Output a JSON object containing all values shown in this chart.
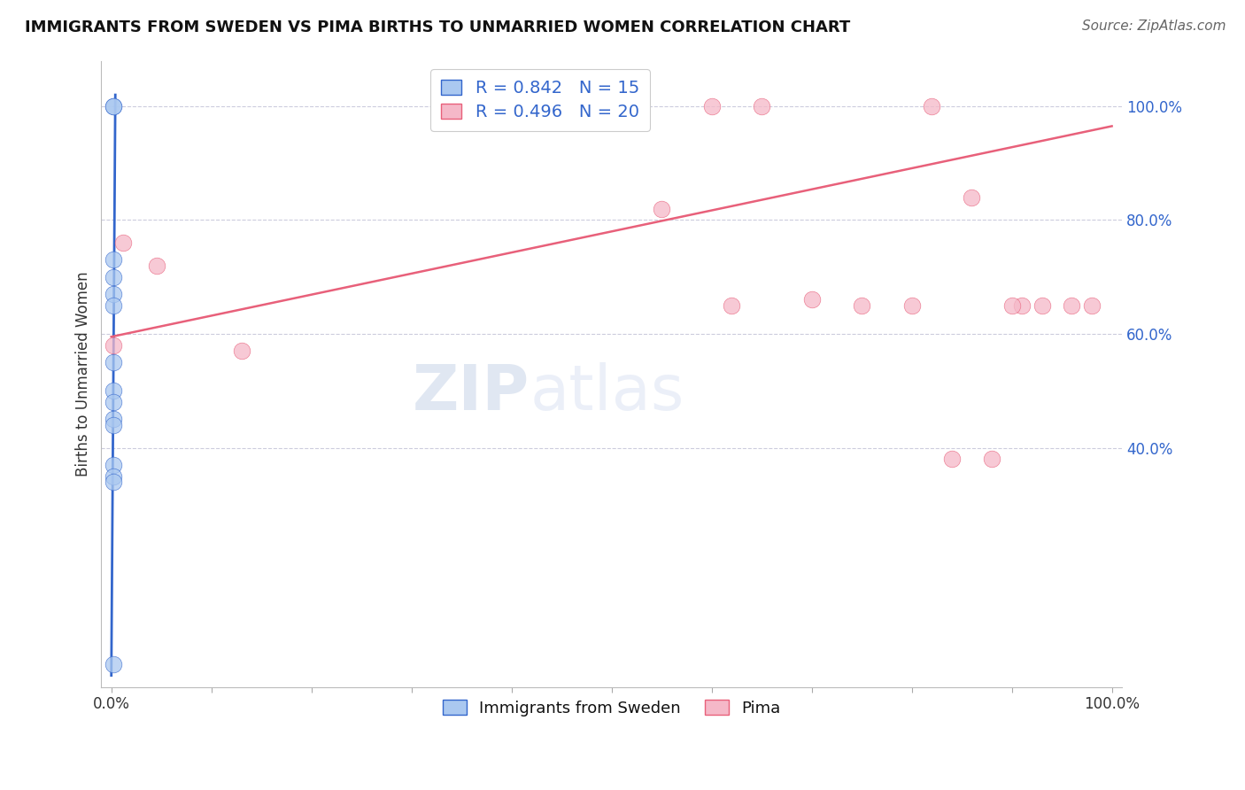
{
  "title": "IMMIGRANTS FROM SWEDEN VS PIMA BIRTHS TO UNMARRIED WOMEN CORRELATION CHART",
  "source": "Source: ZipAtlas.com",
  "ylabel": "Births to Unmarried Women",
  "ytick_labels": [
    "40.0%",
    "60.0%",
    "80.0%",
    "100.0%"
  ],
  "ytick_values": [
    0.4,
    0.6,
    0.8,
    1.0
  ],
  "xlim": [
    -0.01,
    1.01
  ],
  "ylim": [
    -0.02,
    1.08
  ],
  "xtick_positions": [
    0.0,
    0.1,
    0.2,
    0.3,
    0.4,
    0.5,
    0.6,
    0.7,
    0.8,
    0.9,
    1.0
  ],
  "xtick_labels_show": [
    "0.0%",
    "",
    "",
    "",
    "",
    "",
    "",
    "",
    "",
    "",
    "100.0%"
  ],
  "legend_blue_label": "R = 0.842   N = 15",
  "legend_pink_label": "R = 0.496   N = 20",
  "legend_sweden_label": "Immigrants from Sweden",
  "legend_pima_label": "Pima",
  "blue_color": "#aac8f0",
  "blue_line_color": "#3366cc",
  "pink_color": "#f5b8c8",
  "pink_line_color": "#e8607a",
  "watermark_zip": "ZIP",
  "watermark_atlas": "atlas",
  "blue_points_x": [
    0.002,
    0.002,
    0.002,
    0.002,
    0.002,
    0.002,
    0.002,
    0.002,
    0.002,
    0.002,
    0.002,
    0.002,
    0.002,
    0.002,
    0.002
  ],
  "blue_points_y": [
    1.0,
    1.0,
    0.73,
    0.7,
    0.67,
    0.65,
    0.55,
    0.5,
    0.48,
    0.45,
    0.44,
    0.37,
    0.35,
    0.34,
    0.02
  ],
  "pink_points_x": [
    0.002,
    0.012,
    0.045,
    0.13,
    0.55,
    0.62,
    0.7,
    0.75,
    0.8,
    0.84,
    0.88,
    0.91,
    0.93,
    0.96,
    0.98,
    0.6,
    0.65,
    0.82,
    0.86,
    0.9
  ],
  "pink_points_y": [
    0.58,
    0.76,
    0.72,
    0.57,
    0.82,
    0.65,
    0.66,
    0.65,
    0.65,
    0.38,
    0.38,
    0.65,
    0.65,
    0.65,
    0.65,
    1.0,
    1.0,
    1.0,
    0.84,
    0.65
  ],
  "blue_line_x0": 0.0,
  "blue_line_x1": 0.004,
  "blue_line_y0": 0.0,
  "blue_line_y1": 1.02,
  "pink_line_x0": 0.0,
  "pink_line_x1": 1.0,
  "pink_line_y0": 0.595,
  "pink_line_y1": 0.965,
  "grid_color": "#ccccdd",
  "background_color": "#ffffff",
  "title_fontsize": 13,
  "source_fontsize": 11,
  "axis_label_fontsize": 12,
  "tick_fontsize": 12,
  "legend_fontsize": 14
}
